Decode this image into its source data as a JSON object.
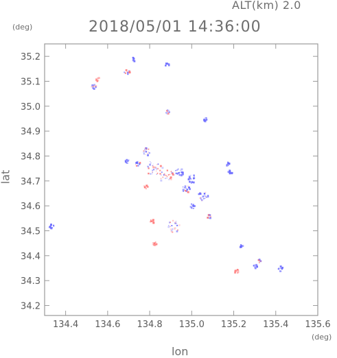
{
  "header": {
    "altitude_label": "ALT(km) 2.0",
    "timestamp": "2018/05/01 14:36:00"
  },
  "axes": {
    "x_label": "lon",
    "y_label": "lat",
    "x_unit": "(deg)",
    "y_unit": "(deg)",
    "x_ticks": [
      "134.4",
      "134.6",
      "134.8",
      "135.0",
      "135.2",
      "135.4",
      "135.6"
    ],
    "y_ticks": [
      "34.2",
      "34.3",
      "34.4",
      "34.5",
      "34.6",
      "34.7",
      "34.8",
      "34.9",
      "35.0",
      "35.1",
      "35.2"
    ]
  },
  "map_extent": {
    "lon_min": 134.3,
    "lon_max": 135.6,
    "lat_min": 34.16,
    "lat_max": 35.25
  },
  "colors": {
    "approaching": "#6b6bff",
    "receding": "#ff7b7b",
    "frame": "#9a9a9a"
  },
  "echo_cells": [
    {
      "lon": 134.33,
      "lat": 34.52,
      "r": 0.012,
      "kind": "blue"
    },
    {
      "lon": 134.53,
      "lat": 35.08,
      "r": 0.012,
      "kind": "mixed"
    },
    {
      "lon": 134.55,
      "lat": 35.11,
      "r": 0.008,
      "kind": "red"
    },
    {
      "lon": 134.69,
      "lat": 35.14,
      "r": 0.014,
      "kind": "mixed"
    },
    {
      "lon": 134.72,
      "lat": 35.19,
      "r": 0.008,
      "kind": "blue"
    },
    {
      "lon": 134.88,
      "lat": 35.17,
      "r": 0.006,
      "kind": "blue"
    },
    {
      "lon": 134.88,
      "lat": 34.98,
      "r": 0.006,
      "kind": "mixed"
    },
    {
      "lon": 135.06,
      "lat": 34.95,
      "r": 0.01,
      "kind": "blue"
    },
    {
      "lon": 134.69,
      "lat": 34.78,
      "r": 0.01,
      "kind": "blue"
    },
    {
      "lon": 134.74,
      "lat": 34.77,
      "r": 0.012,
      "kind": "mixed"
    },
    {
      "lon": 134.78,
      "lat": 34.82,
      "r": 0.018,
      "kind": "mixed"
    },
    {
      "lon": 134.82,
      "lat": 34.75,
      "r": 0.04,
      "kind": "mixed"
    },
    {
      "lon": 134.88,
      "lat": 34.72,
      "r": 0.035,
      "kind": "mixed"
    },
    {
      "lon": 134.94,
      "lat": 34.74,
      "r": 0.02,
      "kind": "blue"
    },
    {
      "lon": 135.0,
      "lat": 34.71,
      "r": 0.02,
      "kind": "blue"
    },
    {
      "lon": 135.05,
      "lat": 34.64,
      "r": 0.025,
      "kind": "mixed"
    },
    {
      "lon": 134.97,
      "lat": 34.67,
      "r": 0.018,
      "kind": "mixed"
    },
    {
      "lon": 135.0,
      "lat": 34.6,
      "r": 0.012,
      "kind": "blue"
    },
    {
      "lon": 134.91,
      "lat": 34.52,
      "r": 0.03,
      "kind": "mixed"
    },
    {
      "lon": 134.81,
      "lat": 34.54,
      "r": 0.006,
      "kind": "red"
    },
    {
      "lon": 134.82,
      "lat": 34.45,
      "r": 0.005,
      "kind": "red"
    },
    {
      "lon": 134.78,
      "lat": 34.68,
      "r": 0.006,
      "kind": "red"
    },
    {
      "lon": 135.17,
      "lat": 34.77,
      "r": 0.008,
      "kind": "blue"
    },
    {
      "lon": 135.18,
      "lat": 34.74,
      "r": 0.008,
      "kind": "blue"
    },
    {
      "lon": 135.23,
      "lat": 34.44,
      "r": 0.008,
      "kind": "blue"
    },
    {
      "lon": 135.21,
      "lat": 34.34,
      "r": 0.008,
      "kind": "red"
    },
    {
      "lon": 135.32,
      "lat": 34.38,
      "r": 0.008,
      "kind": "mixed"
    },
    {
      "lon": 135.3,
      "lat": 34.36,
      "r": 0.005,
      "kind": "blue"
    },
    {
      "lon": 135.42,
      "lat": 34.35,
      "r": 0.014,
      "kind": "blue"
    },
    {
      "lon": 135.08,
      "lat": 34.56,
      "r": 0.005,
      "kind": "mixed"
    }
  ]
}
